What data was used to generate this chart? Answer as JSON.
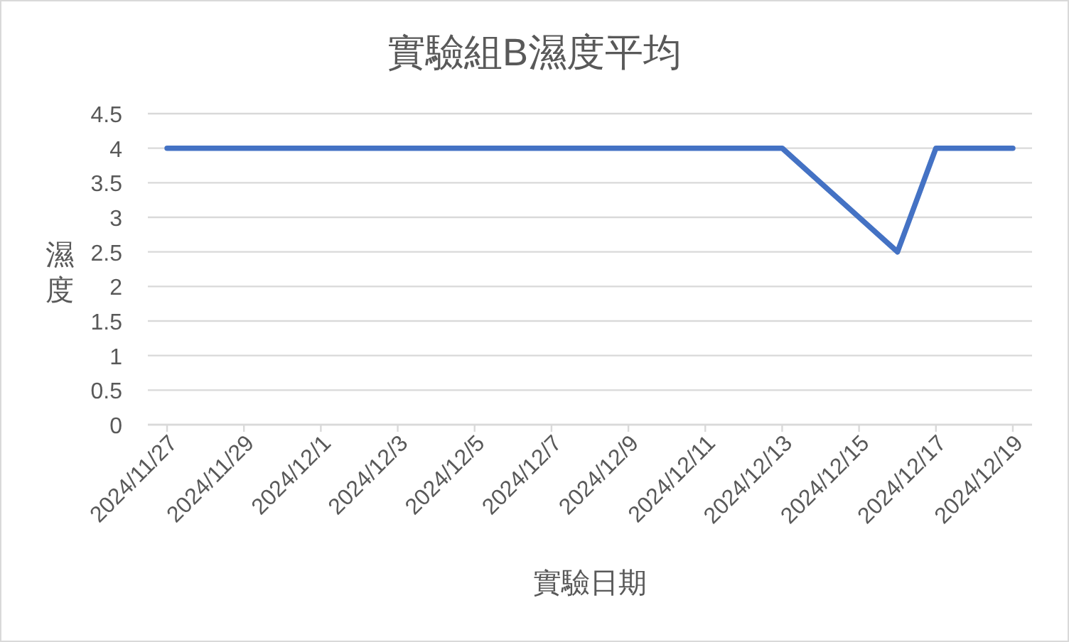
{
  "chart_data": {
    "type": "line",
    "title": "實驗組B濕度平均",
    "xlabel": "實驗日期",
    "ylabel": "濕度",
    "x": [
      "2024-11-27",
      "2024-12-13",
      "2024-12-16",
      "2024-12-17",
      "2024-12-19"
    ],
    "series": [
      {
        "color": "#4472c4",
        "values": [
          4,
          4,
          2.5,
          4,
          4
        ]
      }
    ],
    "xlim": [
      "2024-11-26T12:00",
      "2024-12-19T12:00"
    ],
    "xticks": [
      {
        "value": "2024-11-27",
        "label": "2024/11/27"
      },
      {
        "value": "2024-11-29",
        "label": "2024/11/29"
      },
      {
        "value": "2024-12-01",
        "label": "2024/12/1"
      },
      {
        "value": "2024-12-03",
        "label": "2024/12/3"
      },
      {
        "value": "2024-12-05",
        "label": "2024/12/5"
      },
      {
        "value": "2024-12-07",
        "label": "2024/12/7"
      },
      {
        "value": "2024-12-09",
        "label": "2024/12/9"
      },
      {
        "value": "2024-12-11",
        "label": "2024/12/11"
      },
      {
        "value": "2024-12-13",
        "label": "2024/12/13"
      },
      {
        "value": "2024-12-15",
        "label": "2024/12/15"
      },
      {
        "value": "2024-12-17",
        "label": "2024/12/17"
      },
      {
        "value": "2024-12-19",
        "label": "2024/12/19"
      }
    ],
    "ylim": [
      0,
      4.5
    ],
    "yticks": [
      0,
      0.5,
      1,
      1.5,
      2,
      2.5,
      3,
      3.5,
      4,
      4.5
    ],
    "grid": "y",
    "marker": "none",
    "line_style": "solid"
  }
}
